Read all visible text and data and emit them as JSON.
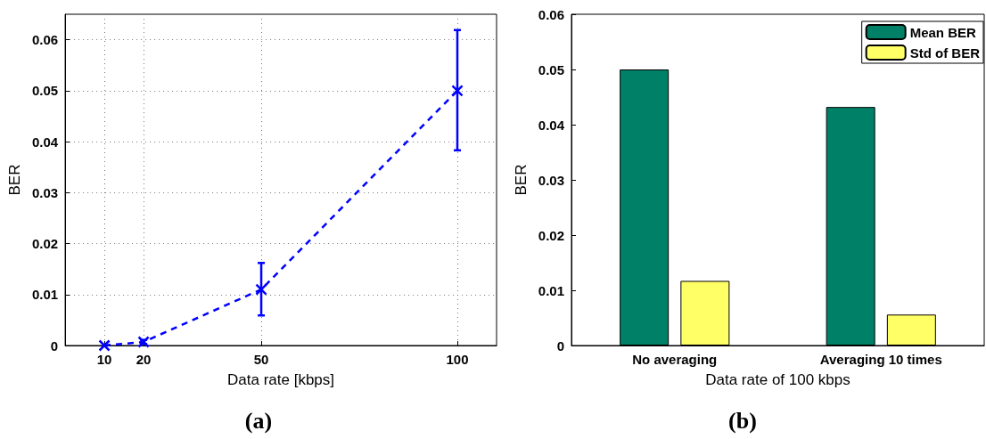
{
  "chart_data": [
    {
      "type": "line",
      "xlabel": "Data rate [kbps]",
      "ylabel": "BER",
      "x": [
        10,
        20,
        50,
        100
      ],
      "series": [
        {
          "color": "#0000ff",
          "values": [
            0,
            0.0007,
            0.011,
            0.05
          ],
          "errors": [
            null,
            0.0004,
            [
              0.0059,
              0.0162
            ],
            [
              0.0383,
              0.0619
            ]
          ]
        }
      ],
      "xlim": [
        0,
        110
      ],
      "xticks": [
        10,
        20,
        50,
        100
      ],
      "ylim": [
        0,
        0.065
      ],
      "yticks": [
        0,
        0.01,
        0.02,
        0.03,
        0.04,
        0.05,
        0.06
      ],
      "grid": true,
      "marker": "cross",
      "line_style": "dashed",
      "annotations": [
        "(a)"
      ]
    },
    {
      "type": "bar",
      "xlabel": "Data rate of 100 kbps",
      "ylabel": "BER",
      "categories": [
        "No averaging",
        "Averaging 10 times"
      ],
      "series": [
        {
          "name": "Mean BER",
          "color": "#008066",
          "values": [
            0.05,
            0.0432
          ]
        },
        {
          "name": "Std of BER",
          "color": "#ffff66",
          "values": [
            0.0117,
            0.0056
          ]
        }
      ],
      "ylim": [
        0,
        0.06
      ],
      "yticks": [
        0,
        0.01,
        0.02,
        0.03,
        0.04,
        0.05,
        0.06
      ],
      "legend": "top right",
      "annotations": [
        "(b)"
      ]
    }
  ]
}
